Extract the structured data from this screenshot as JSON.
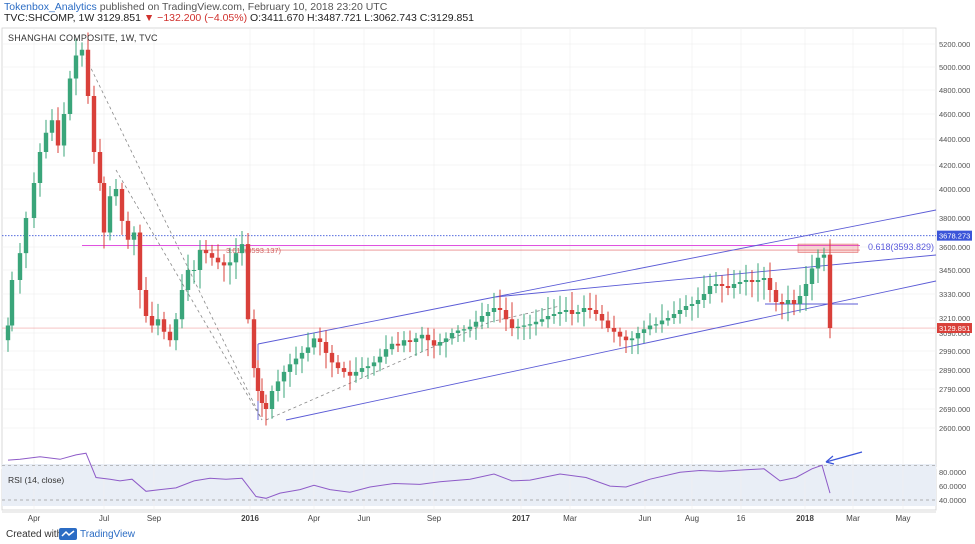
{
  "header": {
    "author": "Tokenbox_Analytics",
    "published": "published on TradingView.com, February 10, 2018 23:20 UTC",
    "symbol_line_start": "TVC:SHCOMP, 1W",
    "last_price": "3129.851",
    "change": "▼ −132.200 (−4.05%)",
    "ohlc": "O:3411.670 H:3487.721 L:3062.743 C:3129.851"
  },
  "chart_title": "SHANGHAI COMPOSITE, 1W, TVC",
  "rsi_label": "RSI (14, close)",
  "footer": {
    "created": "Created with",
    "brand": "TradingView"
  },
  "colors": {
    "up": "#3aa57a",
    "down": "#d9403a",
    "channel": "#5b5bd6",
    "resistance": "#e052e0",
    "dotted": "#3b55d9"
  },
  "chart_data": {
    "type": "candlestick",
    "title": "SHANGHAI COMPOSITE, 1W, TVC",
    "price_axis_ticks": [
      5200,
      5000,
      4800,
      4600,
      4400,
      4200,
      4000,
      3800,
      3600,
      3450,
      3330,
      3210,
      3090,
      2990,
      2890,
      2790,
      2690,
      2600
    ],
    "price_axis_labels": [
      "5200.000",
      "5000.000",
      "4800.000",
      "4600.000",
      "4400.000",
      "4200.000",
      "4000.000",
      "3800.000",
      "3600.000",
      "3450.000",
      "3330.000",
      "3210.000",
      "3090.000",
      "2990.000",
      "2890.000",
      "2790.000",
      "2690.000",
      "2600.000"
    ],
    "x_labels": [
      "Apr",
      "Jul",
      "Sep",
      "2016",
      "Apr",
      "Jun",
      "Sep",
      "2017",
      "Mar",
      "Jun",
      "Aug",
      "16",
      "2018",
      "Mar",
      "May"
    ],
    "price_tags": [
      {
        "value": 3678.273,
        "label": "3678.273",
        "color": "#3b55d9"
      },
      {
        "value": 3129.851,
        "label": "3129.851",
        "color": "#d9403a"
      }
    ],
    "fib_label": "0.618(3593.829)",
    "fib_label_left": "3.618(3593.137)",
    "rsi_ticks": [
      80,
      60,
      40
    ],
    "rsi_labels": [
      "80.0000",
      "60.0000",
      "40.0000"
    ],
    "last_rsi": 38
  }
}
